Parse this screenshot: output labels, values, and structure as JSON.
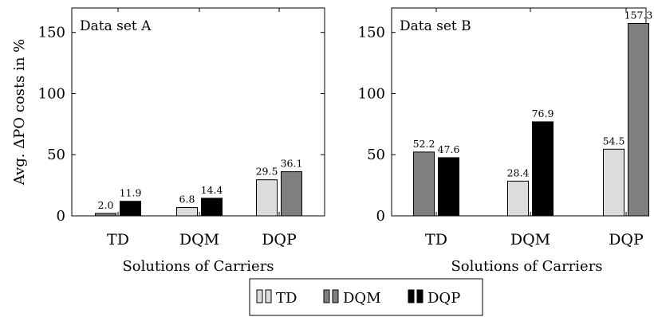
{
  "chart_data": [
    {
      "type": "bar",
      "panel_title": "Data set A",
      "categories": [
        "TD",
        "DQM",
        "DQP"
      ],
      "bars": [
        [
          {
            "series": "DQM",
            "value": 2.0,
            "label": "2.0"
          },
          {
            "series": "DQP",
            "value": 11.9,
            "label": "11.9"
          }
        ],
        [
          {
            "series": "TD",
            "value": 6.8,
            "label": "6.8"
          },
          {
            "series": "DQP",
            "value": 14.4,
            "label": "14.4"
          }
        ],
        [
          {
            "series": "TD",
            "value": 29.5,
            "label": "29.5"
          },
          {
            "series": "DQM",
            "value": 36.1,
            "label": "36.1"
          }
        ]
      ],
      "xlabel": "Solutions of Carriers",
      "ylabel": "Avg. ΔPO costs in %",
      "ylim": [
        0,
        170
      ],
      "yticks": [
        0,
        50,
        100,
        150
      ],
      "grid": false
    },
    {
      "type": "bar",
      "panel_title": "Data set B",
      "categories": [
        "TD",
        "DQM",
        "DQP"
      ],
      "bars": [
        [
          {
            "series": "DQM",
            "value": 52.2,
            "label": "52.2"
          },
          {
            "series": "DQP",
            "value": 47.6,
            "label": "47.6"
          }
        ],
        [
          {
            "series": "TD",
            "value": 28.4,
            "label": "28.4"
          },
          {
            "series": "DQP",
            "value": 76.9,
            "label": "76.9"
          }
        ],
        [
          {
            "series": "TD",
            "value": 54.5,
            "label": "54.5"
          },
          {
            "series": "DQM",
            "value": 157.3,
            "label": "157.3"
          }
        ]
      ],
      "xlabel": "Solutions of Carriers",
      "ylabel": "",
      "ylim": [
        0,
        170
      ],
      "yticks": [
        0,
        50,
        100,
        150
      ],
      "grid": false
    }
  ],
  "legend": {
    "placement": "bottom-center",
    "entries": [
      {
        "name": "TD",
        "color": "#dcdcdc"
      },
      {
        "name": "DQM",
        "color": "#7f7f7f"
      },
      {
        "name": "DQP",
        "color": "#000000"
      }
    ]
  }
}
